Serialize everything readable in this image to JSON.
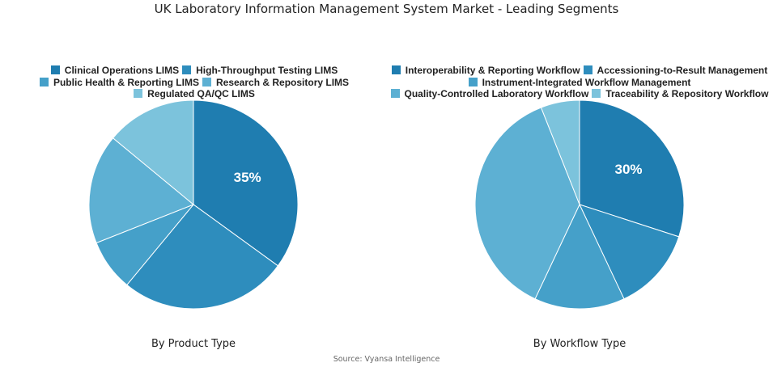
{
  "title": "UK Laboratory Information Management System Market - Leading Segments",
  "source": "Source: Vyansa Intelligence",
  "chart_data": [
    {
      "type": "pie",
      "subtitle": "By Product Type",
      "labels": [
        "Clinical Operations LIMS",
        "High-Throughput Testing LIMS",
        "Public Health & Reporting LIMS",
        "Research & Repository LIMS",
        "Regulated QA/QC LIMS"
      ],
      "values": [
        35,
        26,
        8,
        17,
        14
      ],
      "colors": [
        "#1f7db0",
        "#2e8dbd",
        "#45a0c9",
        "#5db0d3",
        "#7cc3dc"
      ],
      "data_labels": [
        "35%",
        "",
        "",
        "",
        ""
      ],
      "legend": "top"
    },
    {
      "type": "pie",
      "subtitle": "By Workflow Type",
      "labels": [
        "Interoperability & Reporting Workflow",
        "Accessioning-to-Result Management",
        "Instrument-Integrated Workflow Management",
        "Quality-Controlled Laboratory Workflow",
        "Traceability & Repository Workflow"
      ],
      "values": [
        30,
        13,
        14,
        37,
        6
      ],
      "colors": [
        "#1f7db0",
        "#2e8dbd",
        "#45a0c9",
        "#5db0d3",
        "#7cc3dc"
      ],
      "data_labels": [
        "30%",
        "",
        "",
        "",
        ""
      ],
      "legend": "top"
    }
  ]
}
